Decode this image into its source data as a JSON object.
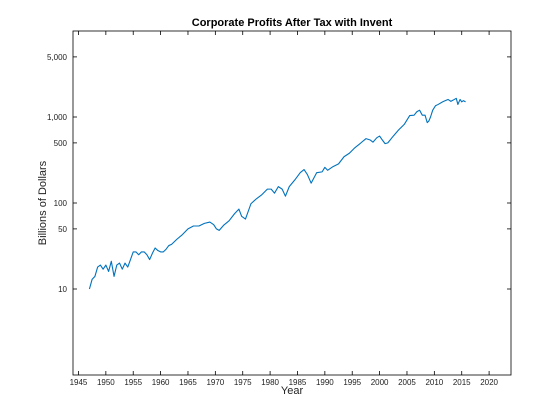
{
  "chart_data": {
    "type": "line",
    "title": "Corporate Profits After Tax with Invent",
    "xlabel": "Year",
    "ylabel": "Billions of Dollars",
    "y_scale": "log",
    "xlim": [
      1944,
      2024
    ],
    "ylim": [
      1,
      10000
    ],
    "x_ticks": [
      1945,
      1950,
      1955,
      1960,
      1965,
      1970,
      1975,
      1980,
      1985,
      1990,
      1995,
      2000,
      2005,
      2010,
      2015,
      2020
    ],
    "y_ticks": [
      {
        "value": 10,
        "label": "10"
      },
      {
        "value": 50,
        "label": "50"
      },
      {
        "value": 100,
        "label": "100"
      },
      {
        "value": 500,
        "label": "500"
      },
      {
        "value": 1000,
        "label": "1,000"
      },
      {
        "value": 5000,
        "label": "5,000"
      }
    ],
    "grid": false,
    "line_color": "#0072BD",
    "series": [
      {
        "x": [
          1947.0,
          1947.5,
          1948.0,
          1948.5,
          1949.0,
          1949.5,
          1950.0,
          1950.5,
          1951.0,
          1951.5,
          1952.0,
          1952.5,
          1953.0,
          1953.5,
          1954.0,
          1954.5,
          1955.0,
          1955.5,
          1956.0,
          1956.5,
          1957.0,
          1957.5,
          1958.0,
          1958.5,
          1959.0,
          1959.5,
          1960.0,
          1960.5,
          1961.0,
          1961.5,
          1962.0,
          1963.0,
          1964.0,
          1965.0,
          1966.0,
          1967.0,
          1968.0,
          1969.0,
          1969.7,
          1970.2,
          1970.7,
          1971.5,
          1972.5,
          1973.5,
          1974.3,
          1974.8,
          1975.5,
          1976.5,
          1977.5,
          1978.5,
          1979.5,
          1980.2,
          1980.8,
          1981.5,
          1982.2,
          1982.8,
          1983.5,
          1984.5,
          1985.5,
          1986.2,
          1986.8,
          1987.5,
          1988.5,
          1989.5,
          1990.0,
          1990.5,
          1991.5,
          1992.5,
          1993.5,
          1994.5,
          1995.5,
          1996.5,
          1997.5,
          1998.3,
          1998.8,
          1999.5,
          2000.0,
          2000.5,
          2001.0,
          2001.5,
          2002.5,
          2003.5,
          2004.5,
          2005.5,
          2006.3,
          2006.8,
          2007.3,
          2007.8,
          2008.3,
          2008.7,
          2009.0,
          2009.3,
          2009.7,
          2010.2,
          2010.7,
          2011.5,
          2012.0,
          2012.5,
          2013.0,
          2013.5,
          2014.0,
          2014.3,
          2014.7,
          2015.0,
          2015.3,
          2015.7
        ],
        "values": [
          10,
          13,
          14,
          18,
          19,
          17,
          19,
          16,
          21,
          14,
          19,
          20,
          17,
          20,
          18,
          22,
          27,
          27,
          25,
          27,
          27,
          25,
          22,
          26,
          30,
          28,
          27,
          27,
          29,
          32,
          33,
          38,
          43,
          50,
          54,
          54,
          58,
          60,
          56,
          50,
          48,
          55,
          62,
          75,
          85,
          70,
          65,
          98,
          112,
          125,
          145,
          145,
          130,
          155,
          145,
          120,
          155,
          185,
          225,
          245,
          215,
          170,
          225,
          230,
          260,
          240,
          265,
          285,
          345,
          380,
          440,
          495,
          560,
          540,
          510,
          575,
          600,
          540,
          490,
          500,
          600,
          710,
          820,
          1040,
          1050,
          1150,
          1200,
          1050,
          1050,
          860,
          900,
          1000,
          1200,
          1350,
          1400,
          1500,
          1550,
          1600,
          1520,
          1580,
          1650,
          1400,
          1600,
          1500,
          1550,
          1500
        ]
      }
    ]
  }
}
